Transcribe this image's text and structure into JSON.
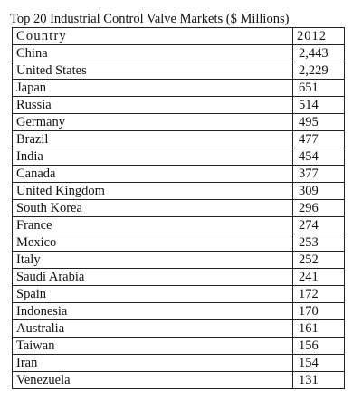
{
  "caption": "Top 20 Industrial Control Valve Markets ($ Millions)",
  "table": {
    "headers": [
      "Country",
      "2012"
    ],
    "rows": [
      [
        "China",
        "2,443"
      ],
      [
        "United States",
        "2,229"
      ],
      [
        "Japan",
        "651"
      ],
      [
        "Russia",
        "514"
      ],
      [
        "Germany",
        "495"
      ],
      [
        "Brazil",
        "477"
      ],
      [
        "India",
        "454"
      ],
      [
        "Canada",
        "377"
      ],
      [
        "United Kingdom",
        "309"
      ],
      [
        "South Korea",
        "296"
      ],
      [
        "France",
        "274"
      ],
      [
        "Mexico",
        "253"
      ],
      [
        "Italy",
        "252"
      ],
      [
        "Saudi Arabia",
        "241"
      ],
      [
        "Spain",
        "172"
      ],
      [
        "Indonesia",
        "170"
      ],
      [
        "Australia",
        "161"
      ],
      [
        "Taiwan",
        "156"
      ],
      [
        "Iran",
        "154"
      ],
      [
        "Venezuela",
        "131"
      ]
    ]
  }
}
